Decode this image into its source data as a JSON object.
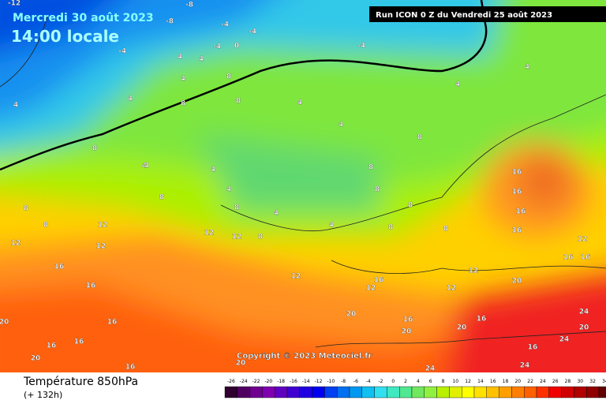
{
  "header": {
    "date": "Mercredi 30 août 2023",
    "time": "14:00 locale",
    "run": "Run ICON 0 Z du Vendredi 25 août 2023"
  },
  "footer": {
    "title": "Température 850hPa",
    "lead": "(+ 132h)",
    "copyright": "Copyright © 2023 Meteociel.fr"
  },
  "color_scale": {
    "values": [
      -26,
      -24,
      -22,
      -20,
      -18,
      -16,
      -14,
      -12,
      -10,
      -8,
      -6,
      -4,
      -2,
      0,
      2,
      4,
      6,
      8,
      10,
      12,
      14,
      16,
      18,
      20,
      22,
      24,
      26,
      28,
      30,
      32,
      34
    ],
    "colors": [
      "#300030",
      "#500060",
      "#700090",
      "#8000b0",
      "#6000c0",
      "#4000d0",
      "#2000e0",
      "#0000f0",
      "#0040f0",
      "#0070f0",
      "#0098f0",
      "#10c0f0",
      "#30e0f0",
      "#40e8c0",
      "#50e890",
      "#70e860",
      "#90f040",
      "#b8f000",
      "#e0f000",
      "#ffff00",
      "#ffe000",
      "#ffc000",
      "#ffa000",
      "#ff8000",
      "#ff6000",
      "#ff3000",
      "#f00000",
      "#d00000",
      "#b00000",
      "#900000",
      "#600000"
    ]
  },
  "contour_labels": [
    -12,
    -8,
    -8,
    -4,
    -4,
    0,
    -4,
    -4,
    -4,
    4,
    4,
    4,
    8,
    4,
    4,
    8,
    4,
    8,
    8,
    4,
    4,
    4,
    8,
    8,
    4,
    4,
    8,
    8,
    8,
    8,
    16,
    16,
    16,
    16,
    16,
    16,
    12,
    12,
    12,
    12,
    12,
    12,
    16,
    16,
    12,
    12,
    16,
    12,
    12,
    20,
    20,
    16,
    16,
    20,
    24,
    20,
    24,
    20,
    24,
    24,
    16,
    20,
    16,
    16,
    16,
    20,
    16,
    20,
    8,
    8,
    8,
    8,
    4,
    4,
    4,
    4,
    8
  ]
}
